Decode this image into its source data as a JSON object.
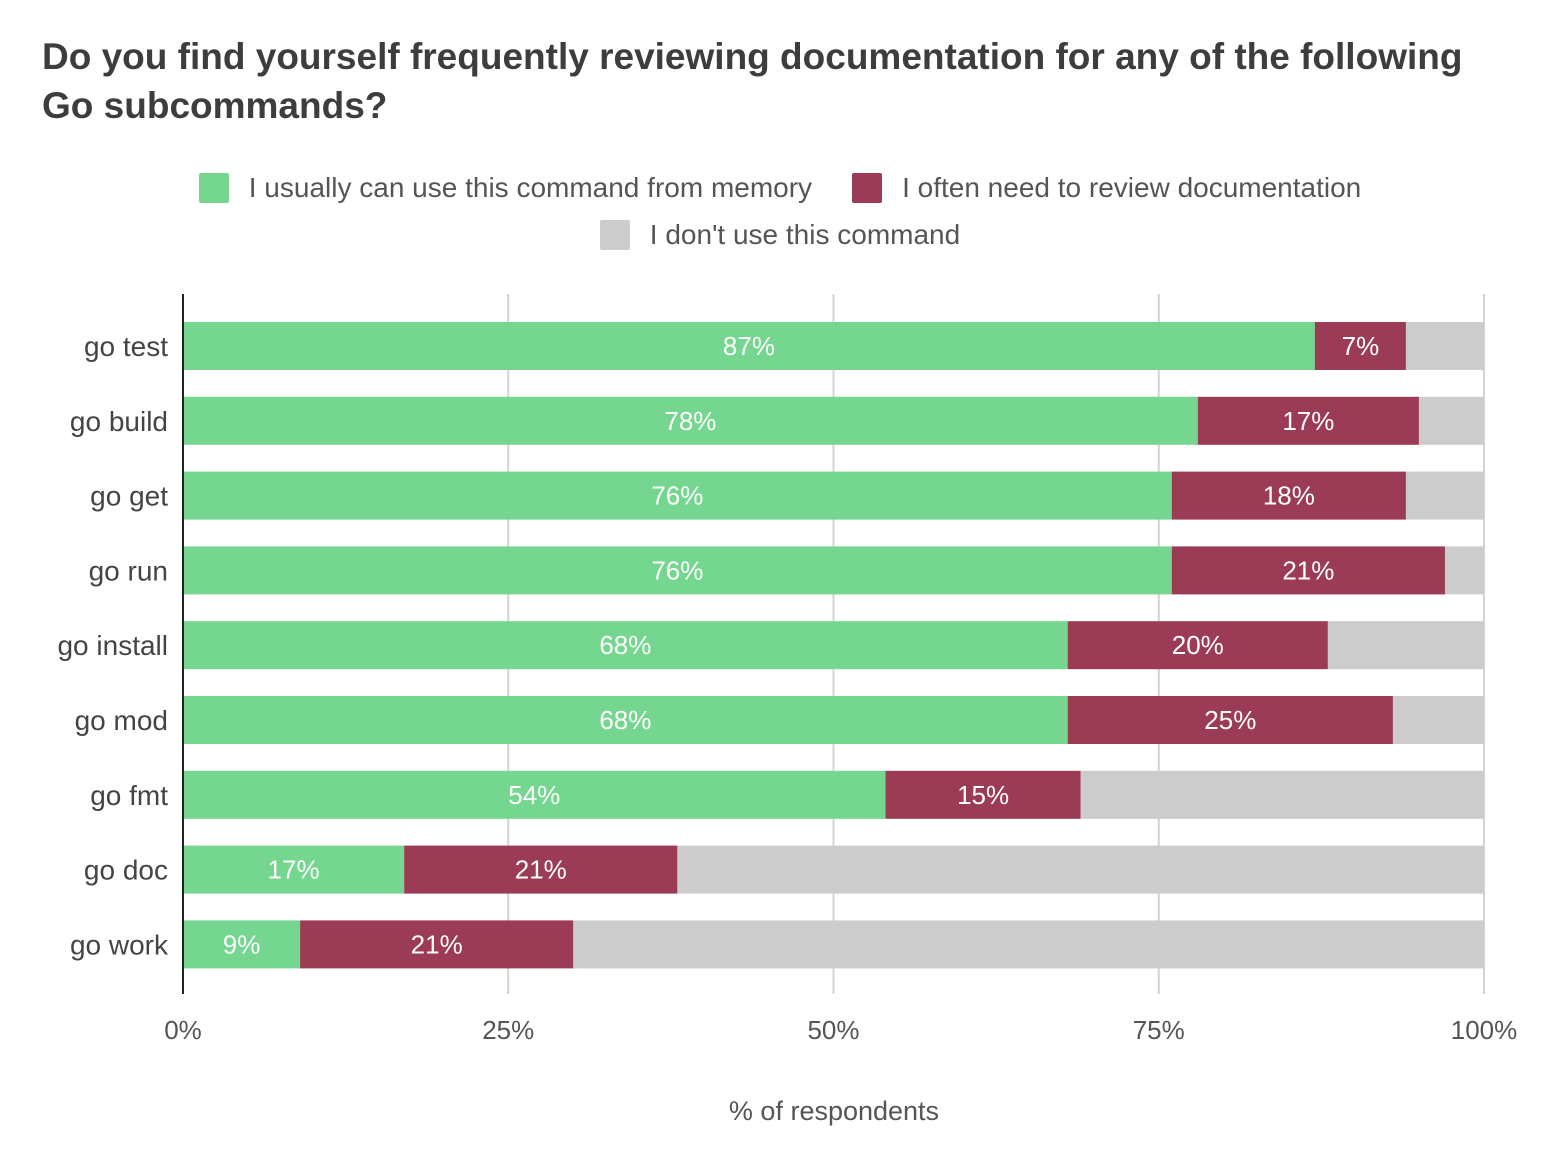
{
  "chart_data": {
    "type": "bar",
    "orientation": "horizontal",
    "stacked": true,
    "title": "Do you find yourself frequently reviewing documentation for any of the following Go subcommands?",
    "xlabel": "% of respondents",
    "ylabel": "",
    "xlim": [
      0,
      100
    ],
    "xticks": [
      "0%",
      "25%",
      "50%",
      "75%",
      "100%"
    ],
    "categories": [
      "go test",
      "go build",
      "go get",
      "go run",
      "go install",
      "go mod",
      "go fmt",
      "go doc",
      "go work"
    ],
    "series": [
      {
        "name": "I usually can use this command from memory",
        "color": "#74d68f",
        "values": [
          87,
          78,
          76,
          76,
          68,
          68,
          54,
          17,
          9
        ],
        "labels": [
          "87%",
          "78%",
          "76%",
          "76%",
          "68%",
          "68%",
          "54%",
          "17%",
          "9%"
        ]
      },
      {
        "name": "I often need to review documentation",
        "color": "#9b3b55",
        "values": [
          7,
          17,
          18,
          21,
          20,
          25,
          15,
          21,
          21
        ],
        "labels": [
          "7%",
          "17%",
          "18%",
          "21%",
          "20%",
          "25%",
          "15%",
          "21%",
          "21%"
        ]
      },
      {
        "name": "I don't use this command",
        "color": "#cccccc",
        "values": [
          6,
          5,
          6,
          3,
          12,
          7,
          31,
          62,
          70
        ],
        "labels": null
      }
    ],
    "legend_position": "top",
    "grid": true
  }
}
